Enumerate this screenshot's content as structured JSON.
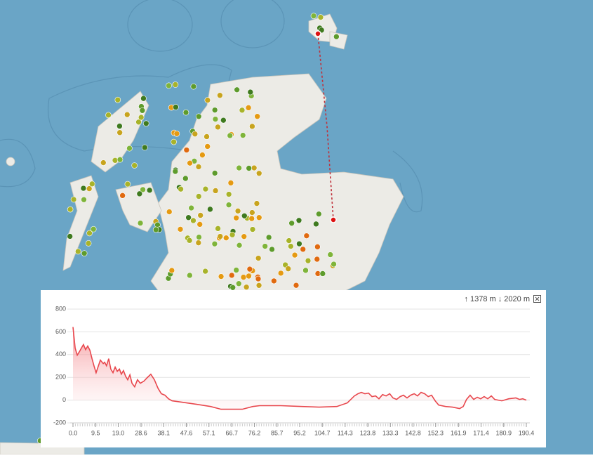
{
  "elevation_summary": "↑ 1378 m ↓ 2020 m",
  "chart_data": {
    "type": "area",
    "color": "#e8474d",
    "grid": true,
    "x": [
      0,
      0.9,
      1.8,
      2.7,
      3.5,
      4.4,
      5.3,
      6.2,
      7.1,
      8.0,
      8.8,
      9.7,
      11.5,
      12.7,
      13.3,
      14.1,
      15.0,
      15.9,
      16.8,
      17.7,
      18.6,
      19.5,
      20.3,
      21.2,
      22.1,
      23.0,
      23.9,
      24.8,
      25.9,
      27.1,
      28.3,
      29.8,
      31.2,
      32.7,
      34.2,
      35.7,
      37.1,
      38.6,
      40.1,
      41.6,
      46.0,
      51.9,
      57.8,
      62.2,
      71.1,
      75.5,
      78.4,
      87.3,
      96.2,
      103.4,
      110.8,
      115.2,
      118.2,
      119.7,
      121.1,
      122.6,
      124.1,
      125.6,
      127.1,
      128.5,
      130.0,
      131.5,
      133.0,
      134.4,
      135.9,
      137.4,
      138.8,
      140.3,
      141.8,
      143.3,
      144.7,
      146.2,
      147.7,
      149.2,
      150.6,
      152.1,
      153.6,
      156.5,
      159.4,
      162.4,
      163.9,
      165.3,
      166.8,
      168.3,
      169.8,
      171.2,
      172.7,
      174.2,
      175.7,
      177.1,
      180.1,
      183.0,
      186.0,
      187.5,
      188.9,
      190.4
    ],
    "values": [
      642,
      457,
      395,
      426,
      457,
      488,
      444,
      475,
      438,
      364,
      302,
      241,
      352,
      321,
      333,
      302,
      364,
      272,
      241,
      290,
      253,
      272,
      228,
      259,
      210,
      179,
      222,
      148,
      117,
      179,
      148,
      167,
      198,
      228,
      179,
      105,
      56,
      43,
      12,
      -6,
      -19,
      -37,
      -56,
      -80,
      -80,
      -56,
      -49,
      -49,
      -56,
      -62,
      -56,
      -25,
      37,
      56,
      68,
      56,
      62,
      31,
      37,
      12,
      49,
      37,
      56,
      19,
      6,
      31,
      43,
      19,
      43,
      56,
      37,
      68,
      56,
      31,
      43,
      -6,
      -43,
      -56,
      -62,
      -74,
      -56,
      6,
      43,
      6,
      25,
      12,
      31,
      12,
      37,
      6,
      -6,
      12,
      19,
      6,
      12,
      0
    ],
    "xlim": [
      0,
      190.4
    ],
    "xticks": [
      {
        "value": 0,
        "label": "0.0"
      },
      9.5,
      {
        "value": 19,
        "label": "19.0"
      },
      28.6,
      38.1,
      47.6,
      57.1,
      66.7,
      76.2,
      85.7,
      95.2,
      104.7,
      114.3,
      123.8,
      133.3,
      142.8,
      152.3,
      161.9,
      171.4,
      180.9,
      190.4
    ],
    "ylim": [
      -200,
      800
    ],
    "yticks": [
      -200,
      0,
      200,
      400,
      600,
      800
    ]
  }
}
